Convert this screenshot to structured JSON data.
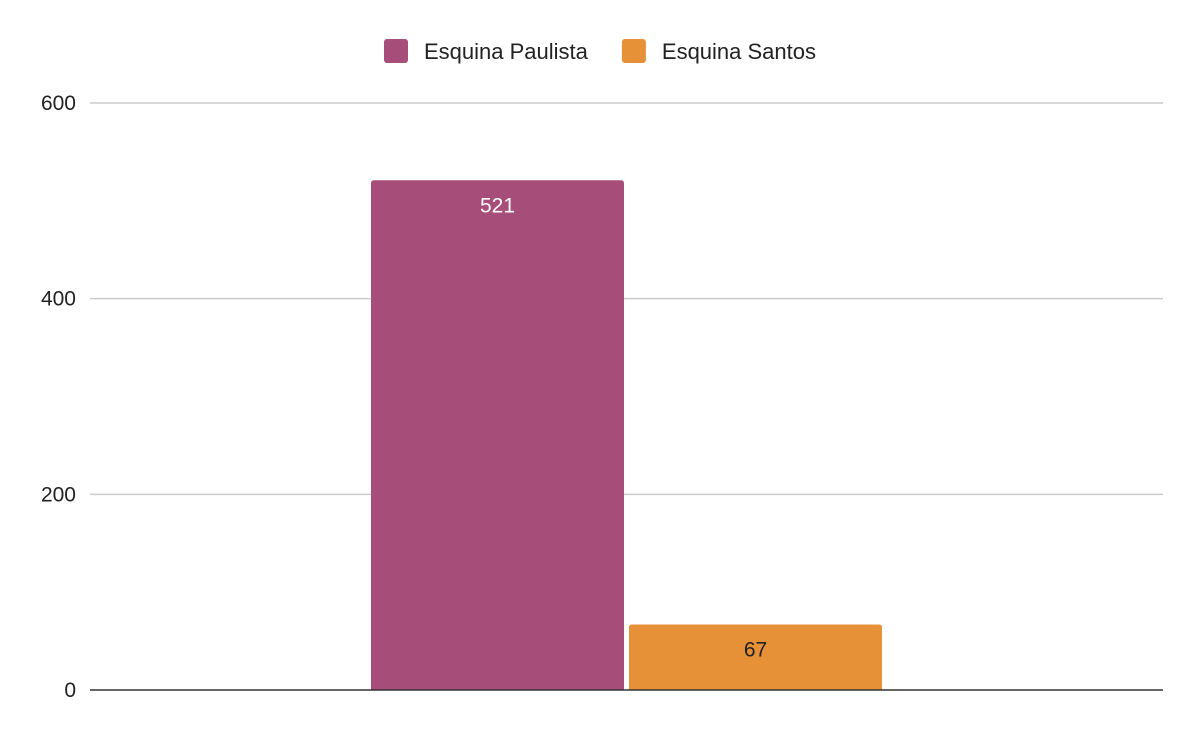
{
  "chart_data": {
    "type": "bar",
    "categories": [
      ""
    ],
    "series": [
      {
        "name": "Esquina Paulista",
        "values": [
          521
        ],
        "color": "#a64d79",
        "label_color": "#ffffff"
      },
      {
        "name": "Esquina Santos",
        "values": [
          67
        ],
        "color": "#e69138",
        "label_color": "#222222"
      }
    ],
    "title": "",
    "xlabel": "",
    "ylabel": "",
    "ylim": [
      0,
      600
    ],
    "yticks": [
      0,
      200,
      400,
      600
    ],
    "grid": true,
    "legend_position": "top",
    "data_labels": true
  },
  "colors": {
    "gridline": "#cccccc",
    "baseline": "#333333",
    "text": "#222222"
  }
}
